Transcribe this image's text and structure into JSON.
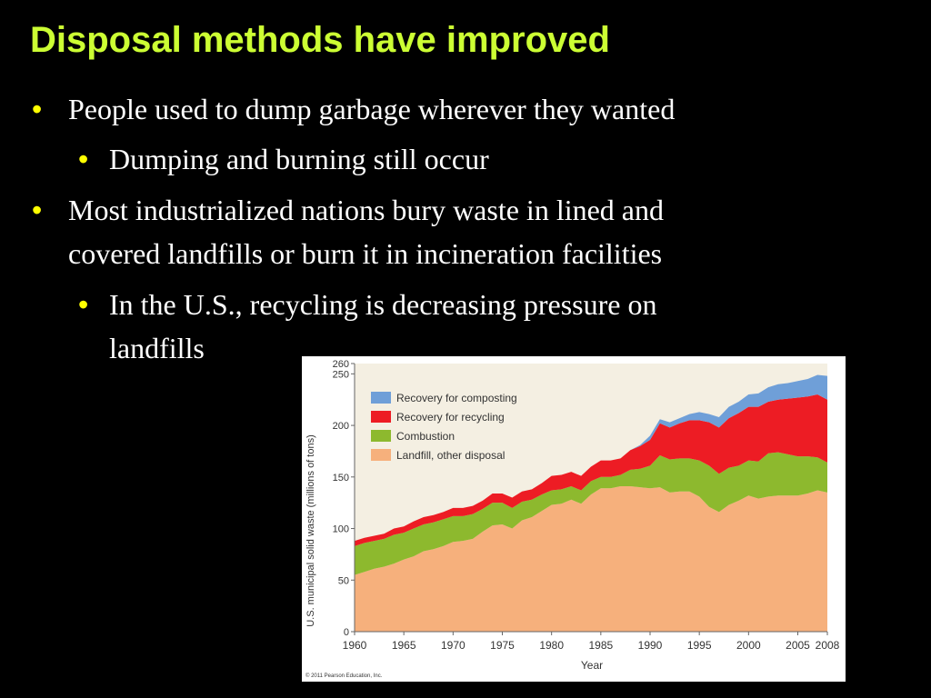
{
  "slide": {
    "title": "Disposal methods have improved",
    "bullets": [
      {
        "level": 1,
        "text": "People used to dump garbage wherever they wanted"
      },
      {
        "level": 2,
        "text": "Dumping and burning still occur"
      },
      {
        "level": 1,
        "line1": "Most industrialized nations bury waste in lined and",
        "line2": "covered landfills or burn it in incineration facilities"
      },
      {
        "level": 2,
        "line1": "In the U.S., recycling is decreasing pressure on",
        "line2": "landfills"
      }
    ]
  },
  "chart_data": {
    "type": "area",
    "stacked": true,
    "title": "",
    "xlabel": "Year",
    "ylabel": "U.S. municipal solid waste (millions of tons)",
    "xlim": [
      1960,
      2008
    ],
    "ylim": [
      0,
      260
    ],
    "x_ticks": [
      "1960",
      "1965",
      "1970",
      "1975",
      "1980",
      "1985",
      "1990",
      "1995",
      "2000",
      "2005",
      "2008"
    ],
    "y_ticks": [
      "0",
      "50",
      "100",
      "150",
      "200",
      "250",
      "260"
    ],
    "legend_position": "top-left",
    "copyright": "© 2011 Pearson Education, Inc.",
    "x": [
      1960,
      1961,
      1962,
      1963,
      1964,
      1965,
      1966,
      1967,
      1968,
      1969,
      1970,
      1971,
      1972,
      1973,
      1974,
      1975,
      1976,
      1977,
      1978,
      1979,
      1980,
      1981,
      1982,
      1983,
      1984,
      1985,
      1986,
      1987,
      1988,
      1989,
      1990,
      1991,
      1992,
      1993,
      1994,
      1995,
      1996,
      1997,
      1998,
      1999,
      2000,
      2001,
      2002,
      2003,
      2004,
      2005,
      2006,
      2007,
      2008
    ],
    "series": [
      {
        "name": "Landfill, other disposal",
        "color": "#f6b07c",
        "values": [
          55,
          58,
          61,
          63,
          66,
          70,
          73,
          78,
          80,
          83,
          87,
          88,
          90,
          97,
          103,
          104,
          100,
          108,
          111,
          117,
          123,
          124,
          128,
          124,
          133,
          139,
          139,
          141,
          141,
          140,
          139,
          140,
          135,
          136,
          136,
          131,
          121,
          116,
          123,
          127,
          132,
          129,
          131,
          132,
          132,
          132,
          134,
          137,
          135
        ]
      },
      {
        "name": "Combustion",
        "color": "#8db92e",
        "values": [
          28,
          28,
          27,
          27,
          28,
          26,
          27,
          26,
          26,
          26,
          25,
          24,
          24,
          22,
          22,
          21,
          20,
          18,
          17,
          16,
          14,
          14,
          13,
          13,
          13,
          11,
          11,
          11,
          16,
          18,
          22,
          31,
          32,
          32,
          32,
          35,
          40,
          37,
          36,
          34,
          34,
          36,
          42,
          42,
          40,
          38,
          36,
          32,
          29
        ]
      },
      {
        "name": "Recovery for recycling",
        "color": "#ed1c24",
        "values": [
          5,
          5,
          5,
          5,
          6,
          6,
          7,
          7,
          7,
          7,
          8,
          8,
          8,
          8,
          9,
          9,
          10,
          10,
          10,
          11,
          14,
          14,
          14,
          14,
          14,
          16,
          16,
          16,
          19,
          22,
          25,
          31,
          31,
          34,
          37,
          39,
          42,
          45,
          48,
          51,
          52,
          53,
          50,
          51,
          54,
          57,
          58,
          61,
          61
        ]
      },
      {
        "name": "Recovery for composting",
        "color": "#6f9fd8",
        "values": [
          0,
          0,
          0,
          0,
          0,
          0,
          0,
          0,
          0,
          0,
          0,
          0,
          0,
          0,
          0,
          0,
          0,
          0,
          0,
          0,
          0,
          0,
          0,
          0,
          0,
          0,
          0,
          0,
          0,
          1,
          4,
          4,
          5,
          5,
          6,
          8,
          8,
          10,
          11,
          11,
          12,
          13,
          14,
          15,
          15,
          16,
          17,
          19,
          23
        ]
      }
    ]
  }
}
